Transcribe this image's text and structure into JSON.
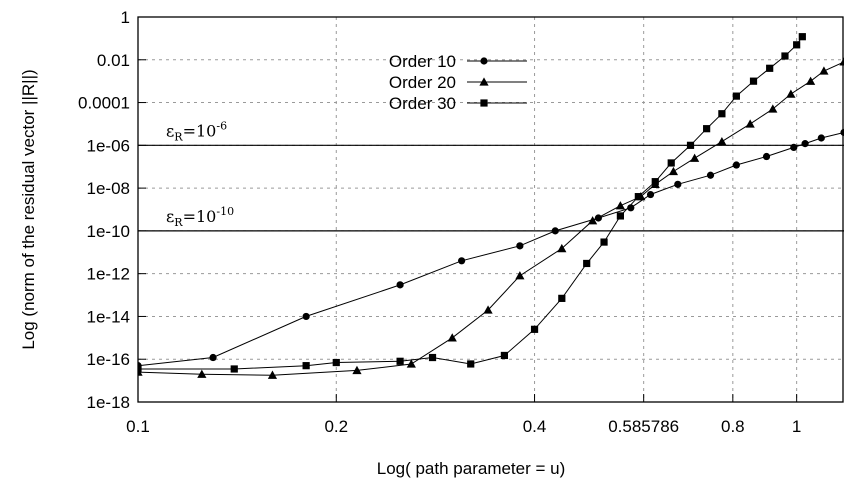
{
  "chart_data": {
    "type": "line",
    "title": "",
    "xlabel": "Log( path parameter = u)",
    "ylabel": "Log (norm of the residual vector ||R||)",
    "xscale": "log",
    "yscale": "log",
    "xlim": [
      0.1,
      1.18
    ],
    "ylim": [
      1e-18,
      1
    ],
    "grid": true,
    "legend_position": "top-center",
    "x_ticks": [
      {
        "value": 0.1,
        "label": "0.1"
      },
      {
        "value": 0.2,
        "label": "0.2"
      },
      {
        "value": 0.4,
        "label": "0.4"
      },
      {
        "value": 0.585786,
        "label": "0.585786"
      },
      {
        "value": 0.8,
        "label": "0.8"
      },
      {
        "value": 1,
        "label": "1"
      }
    ],
    "y_ticks": [
      {
        "value": 1e-18,
        "label": "1e-18"
      },
      {
        "value": 1e-16,
        "label": "1e-16"
      },
      {
        "value": 1e-14,
        "label": "1e-14"
      },
      {
        "value": 1e-12,
        "label": "1e-12"
      },
      {
        "value": 1e-10,
        "label": "1e-10"
      },
      {
        "value": 1e-08,
        "label": "1e-08"
      },
      {
        "value": 1e-06,
        "label": "1e-06"
      },
      {
        "value": 0.0001,
        "label": "0.0001"
      },
      {
        "value": 0.01,
        "label": "0.01"
      },
      {
        "value": 1,
        "label": "1"
      }
    ],
    "series": [
      {
        "name": "Order 10",
        "marker": "circle",
        "points": [
          [
            0.1,
            5e-17
          ],
          [
            0.13,
            1.2e-16
          ],
          [
            0.18,
            1e-14
          ],
          [
            0.25,
            3e-13
          ],
          [
            0.31,
            4e-12
          ],
          [
            0.38,
            2e-11
          ],
          [
            0.43,
            1e-10
          ],
          [
            0.5,
            4e-10
          ],
          [
            0.56,
            1.2e-09
          ],
          [
            0.6,
            5e-09
          ],
          [
            0.66,
            1.5e-08
          ],
          [
            0.74,
            4e-08
          ],
          [
            0.81,
            1.2e-07
          ],
          [
            0.9,
            3e-07
          ],
          [
            0.99,
            8e-07
          ],
          [
            1.03,
            1.2e-06
          ],
          [
            1.09,
            2.2e-06
          ],
          [
            1.18,
            4e-06
          ]
        ]
      },
      {
        "name": "Order 20",
        "marker": "triangle",
        "points": [
          [
            0.1,
            2.5e-17
          ],
          [
            0.125,
            2e-17
          ],
          [
            0.16,
            1.8e-17
          ],
          [
            0.215,
            3e-17
          ],
          [
            0.26,
            6e-17
          ],
          [
            0.3,
            1e-15
          ],
          [
            0.34,
            2e-14
          ],
          [
            0.38,
            8e-13
          ],
          [
            0.44,
            1.5e-11
          ],
          [
            0.49,
            3e-10
          ],
          [
            0.54,
            1.5e-09
          ],
          [
            0.58,
            4e-09
          ],
          [
            0.61,
            1.5e-08
          ],
          [
            0.65,
            6e-08
          ],
          [
            0.7,
            2.5e-07
          ],
          [
            0.77,
            1.5e-06
          ],
          [
            0.85,
            1e-05
          ],
          [
            0.92,
            5e-05
          ],
          [
            0.98,
            0.00025
          ],
          [
            1.05,
            0.001
          ],
          [
            1.1,
            0.003
          ],
          [
            1.18,
            0.008
          ]
        ]
      },
      {
        "name": "Order 30",
        "marker": "square",
        "points": [
          [
            0.1,
            3.5e-17
          ],
          [
            0.14,
            3.5e-17
          ],
          [
            0.18,
            5e-17
          ],
          [
            0.2,
            7e-17
          ],
          [
            0.25,
            8e-17
          ],
          [
            0.28,
            1.2e-16
          ],
          [
            0.32,
            6e-17
          ],
          [
            0.36,
            1.5e-16
          ],
          [
            0.4,
            2.5e-15
          ],
          [
            0.44,
            7e-14
          ],
          [
            0.48,
            3e-12
          ],
          [
            0.51,
            3e-11
          ],
          [
            0.54,
            5e-10
          ],
          [
            0.575,
            4e-09
          ],
          [
            0.61,
            2e-08
          ],
          [
            0.645,
            1.5e-07
          ],
          [
            0.69,
            1e-06
          ],
          [
            0.73,
            6e-06
          ],
          [
            0.77,
            3e-05
          ],
          [
            0.81,
            0.0002
          ],
          [
            0.86,
            0.001
          ],
          [
            0.91,
            0.004
          ],
          [
            0.96,
            0.015
          ],
          [
            1.0,
            0.05
          ],
          [
            1.02,
            0.12
          ]
        ]
      }
    ],
    "reference_lines": [
      {
        "value": 1e-06,
        "eps": "ε",
        "sub": "R",
        "eq": "=10",
        "exp": "-6"
      },
      {
        "value": 1e-10,
        "eps": "ε",
        "sub": "R",
        "eq": "=10",
        "exp": "-10"
      }
    ]
  }
}
